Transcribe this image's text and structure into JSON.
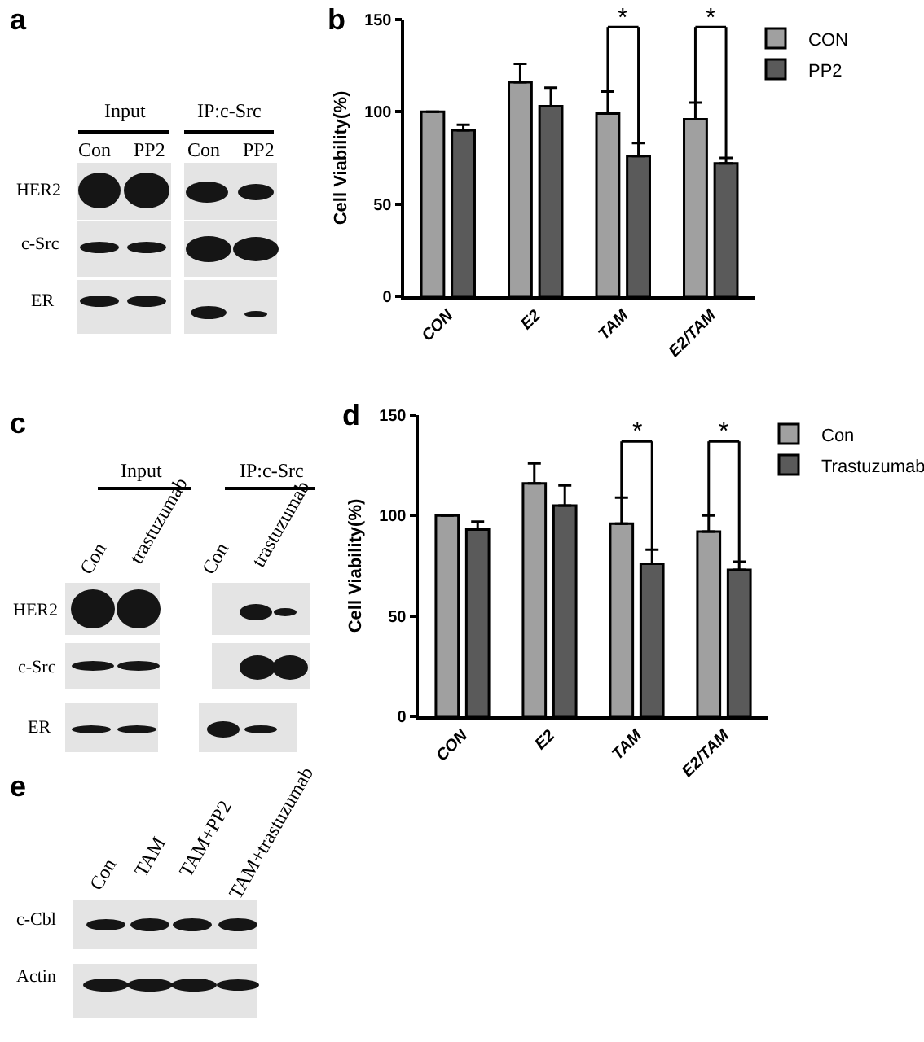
{
  "chart_data": [
    {
      "type": "other",
      "title": "a",
      "annotations": [
        "Input",
        "IP:c-Src",
        "Con",
        "PP2",
        "Con",
        "PP2",
        "HER2",
        "c-Src",
        "ER"
      ]
    },
    {
      "type": "bar",
      "title": "b",
      "ylabel": "Cell Viability(%)",
      "categories": [
        "CON",
        "E2",
        "TAM",
        "E2/TAM"
      ],
      "series": [
        {
          "name": "CON",
          "color": "#a0a0a0",
          "values": [
            100,
            116,
            99,
            96
          ],
          "errors": [
            null,
            [
              116,
              126
            ],
            [
              99,
              111
            ],
            [
              96,
              105
            ]
          ]
        },
        {
          "name": "PP2",
          "color": "#5a5a5a",
          "values": [
            90,
            103,
            76,
            72
          ],
          "errors": [
            [
              90,
              93
            ],
            [
              103,
              113
            ],
            [
              76,
              83
            ],
            [
              72,
              75
            ]
          ]
        }
      ],
      "ylim": [
        0,
        150
      ],
      "yticks": [
        0,
        50,
        100,
        150
      ],
      "legend": "top right",
      "annotations": [
        {
          "text": "*",
          "x": "TAM",
          "y": 111
        },
        {
          "text": "*",
          "x": "E2/TAM",
          "y": 105
        }
      ]
    },
    {
      "type": "other",
      "title": "c",
      "annotations": [
        "Input",
        "IP:c-Src",
        "Con",
        "trastuzumab",
        "Con",
        "trastuzumab",
        "HER2",
        "c-Src",
        "ER"
      ]
    },
    {
      "type": "bar",
      "title": "d",
      "ylabel": "Cell Viability(%)",
      "categories": [
        "CON",
        "E2",
        "TAM",
        "E2/TAM"
      ],
      "series": [
        {
          "name": "Con",
          "color": "#a0a0a0",
          "values": [
            100,
            116,
            96,
            92
          ],
          "errors": [
            null,
            [
              116,
              126
            ],
            [
              96,
              109
            ],
            [
              92,
              100
            ]
          ]
        },
        {
          "name": "Trastuzumab",
          "color": "#5a5a5a",
          "values": [
            93,
            105,
            76,
            73
          ],
          "errors": [
            [
              93,
              97
            ],
            [
              105,
              115
            ],
            [
              76,
              83
            ],
            [
              73,
              77
            ]
          ]
        }
      ],
      "ylim": [
        0,
        150
      ],
      "yticks": [
        0,
        50,
        100,
        150
      ],
      "legend": "top right",
      "annotations": [
        {
          "text": "*",
          "x": "TAM",
          "y": 109
        },
        {
          "text": "*",
          "x": "E2/TAM",
          "y": 100
        }
      ]
    },
    {
      "type": "other",
      "title": "e",
      "annotations": [
        "Con",
        "TAM",
        "TAM+PP2",
        "TAM+trastuzumab",
        "c-Cbl",
        "Actin"
      ]
    }
  ]
}
